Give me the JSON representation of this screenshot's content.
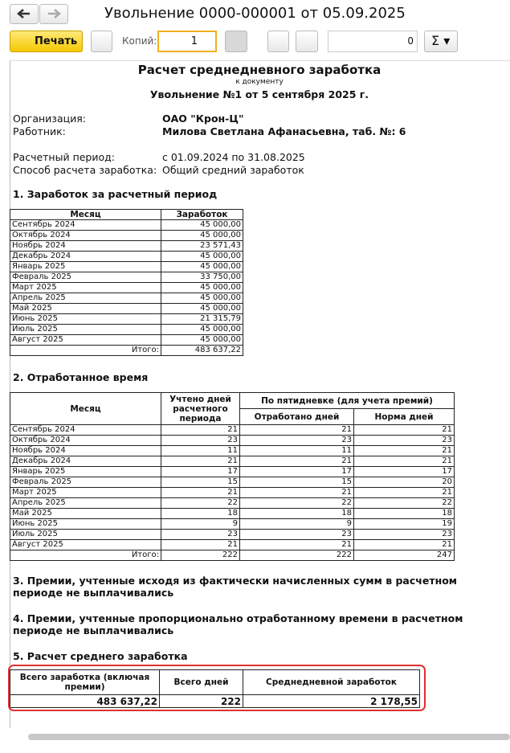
{
  "window": {
    "title": "Увольнение 0000-000001 от 05.09.2025"
  },
  "toolbar": {
    "print": "Печать",
    "copies_label": "Копий:",
    "copies_value": "1",
    "counter": "0"
  },
  "report": {
    "title": "Расчет среднедневного заработка",
    "subtitle": "к документу",
    "document": "Увольнение №1 от 5 сентября 2025 г.",
    "info": [
      [
        "Организация:",
        "ОАО \"Крон-Ц\""
      ],
      [
        "Работник:",
        "Милова Светлана Афанасьевна, таб. №: 6"
      ],
      [
        "Расчетный период:",
        "с 01.09.2024 по 31.08.2025"
      ],
      [
        "Способ расчета заработка:",
        "Общий средний заработок"
      ]
    ],
    "section1": {
      "heading": "1. Заработок за расчетный период",
      "headers": [
        "Месяц",
        "Заработок"
      ],
      "rows": [
        [
          "Сентябрь 2024",
          "45 000,00"
        ],
        [
          "Октябрь 2024",
          "45 000,00"
        ],
        [
          "Ноябрь 2024",
          "23 571,43"
        ],
        [
          "Декабрь 2024",
          "45 000,00"
        ],
        [
          "Январь 2025",
          "45 000,00"
        ],
        [
          "Февраль 2025",
          "33 750,00"
        ],
        [
          "Март 2025",
          "45 000,00"
        ],
        [
          "Апрель 2025",
          "45 000,00"
        ],
        [
          "Май 2025",
          "45 000,00"
        ],
        [
          "Июнь 2025",
          "21 315,79"
        ],
        [
          "Июль 2025",
          "45 000,00"
        ],
        [
          "Август 2025",
          "45 000,00"
        ]
      ],
      "total": [
        "Итого:",
        "483 637,22"
      ]
    },
    "section2": {
      "heading": "2. Отработанное время",
      "headers": [
        "Месяц",
        "Учтено дней расчетного периода",
        "По пятидневке (для учета премий)",
        "Отработано дней",
        "Норма дней"
      ],
      "rows": [
        [
          "Сентябрь 2024",
          21,
          21,
          21
        ],
        [
          "Октябрь 2024",
          23,
          23,
          23
        ],
        [
          "Ноябрь 2024",
          11,
          11,
          21
        ],
        [
          "Декабрь 2024",
          21,
          21,
          21
        ],
        [
          "Январь 2025",
          17,
          17,
          17
        ],
        [
          "Февраль 2025",
          15,
          15,
          20
        ],
        [
          "Март 2025",
          21,
          21,
          21
        ],
        [
          "Апрель 2025",
          22,
          22,
          22
        ],
        [
          "Май 2025",
          18,
          18,
          18
        ],
        [
          "Июнь 2025",
          9,
          9,
          19
        ],
        [
          "Июль 2025",
          23,
          23,
          23
        ],
        [
          "Август 2025",
          21,
          21,
          21
        ]
      ],
      "total": [
        "Итого:",
        222,
        222,
        247
      ]
    },
    "section3": {
      "heading": "3. Премии, учтенные исходя из фактически начисленных сумм в расчетном периоде не выплачивались"
    },
    "section4": {
      "heading": "4. Премии, учтенные пропорционально отработанному времени в расчетном периоде не выплачивались"
    },
    "section5": {
      "heading": "5. Расчет среднего  заработка",
      "headers": [
        "Всего заработка (включая премии)",
        "Всего дней",
        "Среднедневной заработок"
      ],
      "values": [
        "483 637,22",
        222,
        "2 178,55"
      ]
    }
  }
}
